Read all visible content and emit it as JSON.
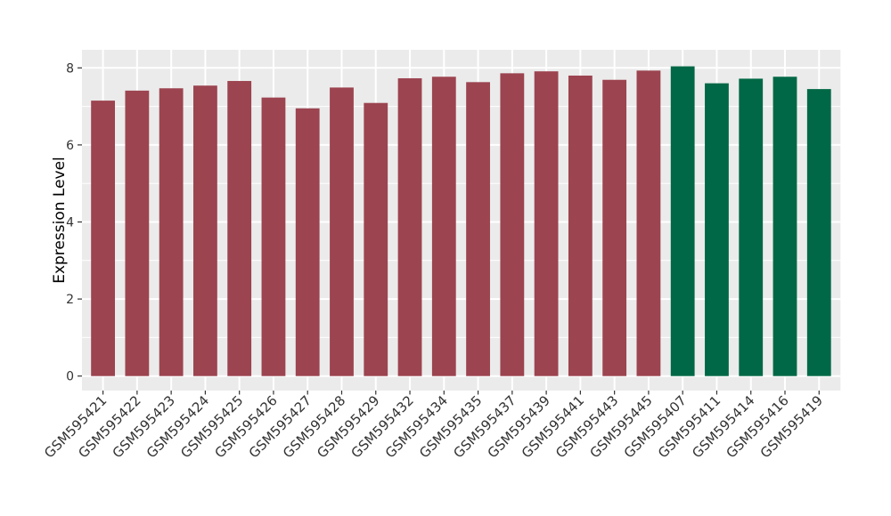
{
  "chart_data": {
    "type": "bar",
    "title": "",
    "xlabel": "",
    "ylabel": "Expression Level",
    "ylim": [
      0,
      8.47
    ],
    "yticks": [
      0,
      2,
      4,
      6,
      8
    ],
    "minor_yticks": [
      1,
      3,
      5,
      7
    ],
    "grid": "on",
    "legend_position": "none",
    "categories": [
      "GSM595421",
      "GSM595422",
      "GSM595423",
      "GSM595424",
      "GSM595425",
      "GSM595426",
      "GSM595427",
      "GSM595428",
      "GSM595429",
      "GSM595432",
      "GSM595434",
      "GSM595435",
      "GSM595437",
      "GSM595439",
      "GSM595441",
      "GSM595443",
      "GSM595445",
      "GSM595407",
      "GSM595411",
      "GSM595414",
      "GSM595416",
      "GSM595419"
    ],
    "values": [
      7.15,
      7.41,
      7.47,
      7.54,
      7.66,
      7.23,
      6.95,
      7.49,
      7.09,
      7.73,
      7.77,
      7.63,
      7.86,
      7.91,
      7.8,
      7.69,
      7.93,
      8.04,
      7.6,
      7.72,
      7.77,
      7.45
    ],
    "groups": [
      "groupA",
      "groupA",
      "groupA",
      "groupA",
      "groupA",
      "groupA",
      "groupA",
      "groupA",
      "groupA",
      "groupA",
      "groupA",
      "groupA",
      "groupA",
      "groupA",
      "groupA",
      "groupA",
      "groupA",
      "groupB",
      "groupB",
      "groupB",
      "groupB",
      "groupB"
    ],
    "colors": {
      "groupA": "#9C4450",
      "groupB": "#006846",
      "panel_background": "#EBEBEB",
      "grid": "#FFFFFF",
      "tick_text": "#333333",
      "axis_title": "#000000",
      "tick_mark": "#333333",
      "figure_background": "#FFFFFF"
    }
  }
}
